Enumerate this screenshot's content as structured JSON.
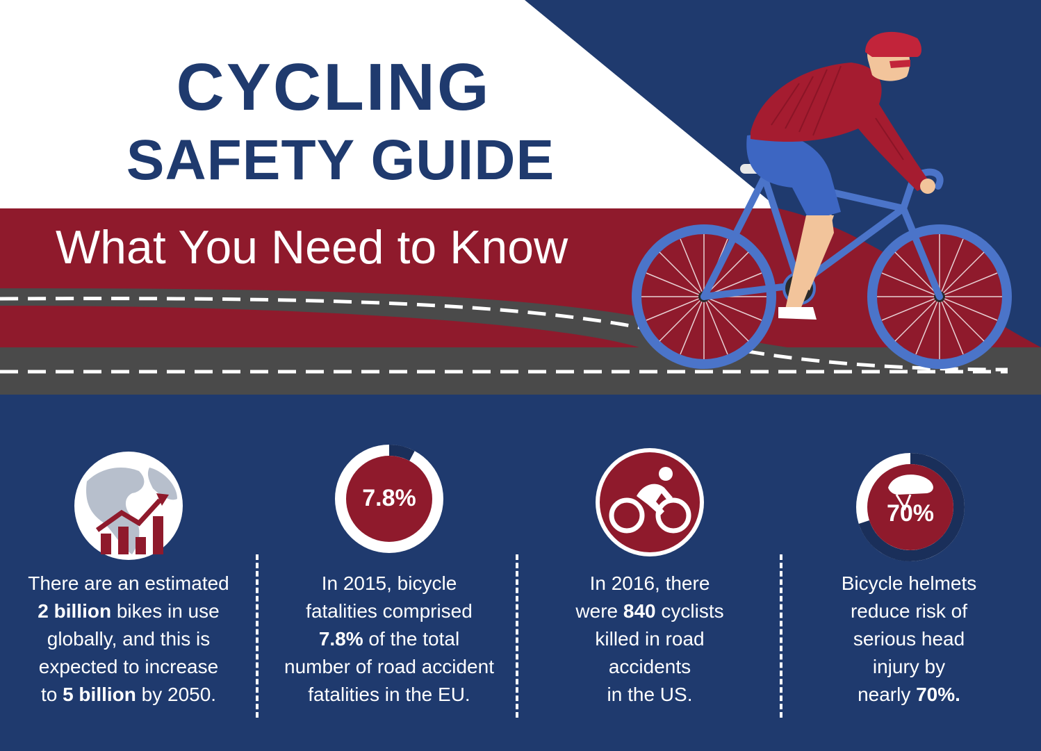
{
  "header": {
    "title": "CYCLING",
    "subtitle": "SAFETY GUIDE",
    "tagline": "What You Need to Know"
  },
  "colors": {
    "navy": "#1f3a6e",
    "red": "#8f1a2c",
    "road": "#4a4a4a",
    "white": "#ffffff",
    "bike_blue": "#4b74c9"
  },
  "stats": [
    {
      "icon": "globe-growth-icon",
      "lines": [
        [
          "There are an estimated"
        ],
        [
          "",
          "2 billion",
          " bikes in use"
        ],
        [
          "globally, and this is"
        ],
        [
          "expected to increase"
        ],
        [
          "to ",
          "5 billion",
          " by 2050."
        ]
      ]
    },
    {
      "icon": "percent-ring-icon",
      "ring_label": "7.8%",
      "ring_fraction": 0.078,
      "lines": [
        [
          "In 2015, bicycle"
        ],
        [
          "fatalities comprised"
        ],
        [
          "",
          "7.8%",
          " of the total"
        ],
        [
          "number of road accident"
        ],
        [
          "fatalities in the EU."
        ]
      ]
    },
    {
      "icon": "cyclist-icon",
      "lines": [
        [
          "In 2016, there"
        ],
        [
          "were ",
          "840",
          " cyclists"
        ],
        [
          "killed in road"
        ],
        [
          "accidents"
        ],
        [
          "in the US."
        ]
      ]
    },
    {
      "icon": "helmet-ring-icon",
      "ring_label": "70%",
      "ring_fraction": 0.7,
      "lines": [
        [
          "Bicycle helmets"
        ],
        [
          "reduce risk of"
        ],
        [
          "serious head"
        ],
        [
          "injury by"
        ],
        [
          "nearly ",
          "70%.",
          ""
        ]
      ]
    }
  ]
}
